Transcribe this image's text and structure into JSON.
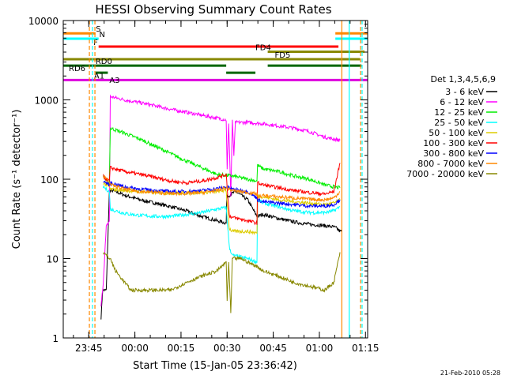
{
  "chart_data": {
    "type": "line",
    "title": "HESSI Observing Summary Count Rates",
    "xlabel": "Start Time (15-Jan-05 23:36:42)",
    "ylabel": "Count Rate (s⁻¹ detector⁻¹)",
    "yscale": "log",
    "ylim": [
      1,
      10000
    ],
    "xlim_minutes_after_start": [
      0,
      99
    ],
    "x_ticks": [
      "23:45",
      "00:00",
      "00:15",
      "00:30",
      "00:45",
      "01:00",
      "01:15"
    ],
    "y_ticks": [
      "1",
      "10",
      "100",
      "1000",
      "10000"
    ],
    "legend_position": "right",
    "legend_title": "Det 1,3,4,5,6,9",
    "timestamp": "21-Feb-2010 05:28",
    "series": [
      {
        "name": "3 - 6 keV",
        "color": "#000000",
        "x": [
          12.3,
          12.8,
          13,
          14,
          15,
          16,
          20,
          25,
          30,
          35,
          40,
          45,
          50,
          53,
          53.2,
          56,
          60,
          63,
          65,
          70,
          75,
          80,
          85,
          88,
          89,
          90,
          90.5
        ],
        "y": [
          1.8,
          4,
          4,
          4,
          70,
          72,
          63,
          55,
          50,
          45,
          40,
          34,
          30,
          28,
          60,
          70,
          55,
          34,
          36,
          32,
          29,
          27,
          26,
          25,
          24,
          22,
          22
        ]
      },
      {
        "name": "6 - 12 keV",
        "color": "#ff00ff",
        "x": [
          12.3,
          13,
          14,
          15,
          15.3,
          20,
          25,
          30,
          35,
          40,
          45,
          50,
          53,
          53.3,
          53.8,
          54.5,
          55,
          55.5,
          56,
          60,
          65,
          70,
          75,
          80,
          85,
          88,
          90
        ],
        "y": [
          2.5,
          5,
          25,
          30,
          1100,
          1000,
          920,
          840,
          760,
          700,
          640,
          590,
          560,
          130,
          520,
          60,
          540,
          200,
          520,
          520,
          500,
          470,
          440,
          400,
          340,
          320,
          310
        ]
      },
      {
        "name": "12 - 25 keV",
        "color": "#00ee00",
        "x": [
          13,
          14,
          15,
          15.3,
          20,
          25,
          30,
          35,
          40,
          45,
          50,
          55,
          60,
          63,
          63.2,
          65,
          70,
          75,
          80,
          85,
          88,
          90
        ],
        "y": [
          110,
          95,
          90,
          440,
          380,
          320,
          260,
          210,
          170,
          140,
          115,
          110,
          100,
          95,
          150,
          135,
          125,
          110,
          100,
          85,
          80,
          78
        ]
      },
      {
        "name": "25 - 50 keV",
        "color": "#00ffff",
        "x": [
          13,
          14,
          15,
          15.3,
          20,
          25,
          30,
          35,
          40,
          45,
          50,
          53,
          54,
          55,
          60,
          63,
          63.2,
          65,
          70,
          75,
          80,
          85,
          88,
          90
        ],
        "y": [
          80,
          75,
          70,
          42,
          37,
          35,
          34,
          34,
          36,
          38,
          42,
          44,
          14,
          11,
          10,
          9,
          55,
          50,
          45,
          40,
          38,
          38,
          40,
          45
        ]
      },
      {
        "name": "50 - 100 keV",
        "color": "#ddcc00",
        "x": [
          13,
          14,
          15,
          15.3,
          20,
          25,
          30,
          35,
          40,
          45,
          50,
          53,
          54,
          55,
          60,
          63,
          63.2,
          65,
          70,
          75,
          80,
          85,
          88,
          90
        ],
        "y": [
          90,
          85,
          80,
          75,
          72,
          70,
          68,
          67,
          67,
          68,
          70,
          72,
          24,
          22,
          22,
          21,
          62,
          60,
          55,
          52,
          50,
          48,
          50,
          55
        ]
      },
      {
        "name": "100 - 300 keV",
        "color": "#ff0000",
        "x": [
          13,
          14,
          15,
          15.3,
          20,
          25,
          30,
          35,
          40,
          45,
          50,
          53,
          54,
          55,
          60,
          63,
          63.2,
          65,
          70,
          75,
          80,
          85,
          88,
          90
        ],
        "y": [
          110,
          100,
          95,
          140,
          125,
          115,
          105,
          95,
          90,
          95,
          105,
          115,
          35,
          33,
          30,
          28,
          90,
          85,
          78,
          72,
          68,
          65,
          70,
          160
        ]
      },
      {
        "name": "300 - 800 keV",
        "color": "#0000ff",
        "x": [
          13,
          14,
          15,
          15.3,
          20,
          25,
          30,
          35,
          40,
          45,
          50,
          53,
          55,
          60,
          63,
          63.2,
          65,
          70,
          75,
          80,
          85,
          88,
          90
        ],
        "y": [
          95,
          90,
          85,
          90,
          80,
          75,
          72,
          70,
          70,
          72,
          76,
          80,
          75,
          70,
          58,
          55,
          52,
          50,
          48,
          46,
          46,
          48,
          55
        ]
      },
      {
        "name": "800 - 7000 keV",
        "color": "#ff8800",
        "x": [
          13,
          14,
          15,
          15.3,
          20,
          25,
          30,
          35,
          40,
          45,
          50,
          53,
          55,
          60,
          63,
          63.2,
          65,
          70,
          75,
          80,
          85,
          88,
          90
        ],
        "y": [
          110,
          100,
          95,
          85,
          75,
          70,
          68,
          66,
          66,
          68,
          72,
          78,
          72,
          68,
          65,
          60,
          62,
          60,
          58,
          56,
          55,
          58,
          70
        ]
      },
      {
        "name": "7000 - 20000 keV",
        "color": "#888800",
        "x": [
          13,
          14,
          15,
          15.3,
          17,
          20,
          22,
          25,
          30,
          35,
          40,
          45,
          50,
          53,
          53.3,
          53.8,
          54.5,
          55,
          58,
          60,
          63,
          65,
          70,
          75,
          80,
          85,
          88,
          90
        ],
        "y": [
          12,
          11,
          10,
          10,
          7,
          5,
          4,
          4,
          4,
          4,
          5,
          6,
          7,
          9,
          3,
          9,
          2,
          10,
          10,
          9,
          8,
          7,
          6,
          5,
          4.5,
          4,
          5,
          12
        ]
      }
    ],
    "flag_lines": [
      {
        "label": "S",
        "color": "#ff8800",
        "y_level": 6900,
        "segments": [
          [
            0,
            10.5
          ],
          [
            88.5,
            99
          ]
        ],
        "label_at": 10.6
      },
      {
        "label": "N",
        "color": "#00ffff",
        "y_level": 5900,
        "segments": [
          [
            0,
            11.5
          ],
          [
            88.5,
            99
          ]
        ],
        "label_at": 11.7
      },
      {
        "label": "F",
        "color": "#ff0000",
        "y_level": 4700,
        "segments": [
          [
            11.5,
            89.5
          ]
        ],
        "label_at": 9.8
      },
      {
        "label": "FD4",
        "color": "#888800",
        "y_level": 4050,
        "segments": [
          [
            66.5,
            98
          ]
        ],
        "label_at": 62.5
      },
      {
        "label": "FD5",
        "color": "#888800",
        "y_level": 3250,
        "segments": [
          [
            0,
            96.5
          ]
        ],
        "label_at": 68.8
      },
      {
        "label": "RD0",
        "color": "#006600",
        "y_level": 2700,
        "segments": [
          [
            0,
            53
          ],
          [
            66.5,
            97
          ]
        ],
        "label_at": 10.5
      },
      {
        "label": "RD6",
        "color": "#006600",
        "y_level": 2200,
        "segments": [
          [
            10.5,
            14.5
          ],
          [
            53,
            62.5
          ]
        ],
        "label_at": 1.8
      },
      {
        "label": "A1",
        "color": "#dd00dd",
        "y_level": 1780,
        "segments": [
          [
            0,
            99
          ]
        ],
        "label_at": 10
      },
      {
        "label": "A3",
        "color": "#dd00dd",
        "y_level": 1570,
        "segments": [],
        "label_at": 15
      }
    ],
    "vertical_markers": [
      {
        "color": "#ff8800",
        "x": 8.5,
        "style": "dashed"
      },
      {
        "color": "#00ffff",
        "x": 9.5,
        "style": "dashed"
      },
      {
        "color": "#ff8800",
        "x": 10.3,
        "style": "dashed"
      },
      {
        "color": "#ff8800",
        "x": 90.6,
        "style": "solid"
      },
      {
        "color": "#00ffff",
        "x": 93,
        "style": "solid"
      },
      {
        "color": "#ff8800",
        "x": 96.7,
        "style": "dashed"
      },
      {
        "color": "#00ffff",
        "x": 97.2,
        "style": "dashed"
      }
    ]
  }
}
